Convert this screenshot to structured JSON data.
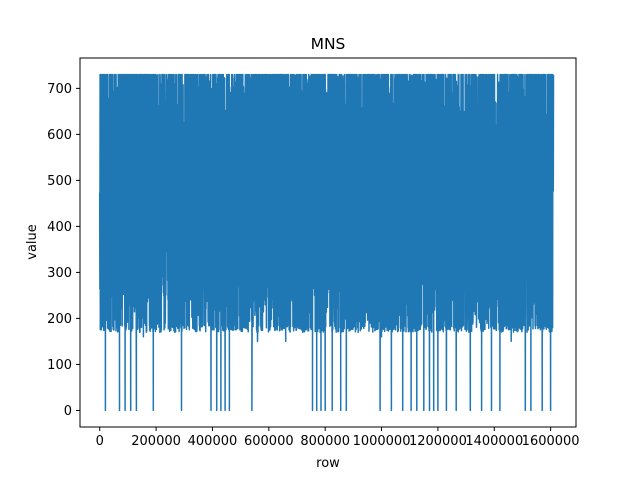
{
  "chart_data": {
    "type": "line",
    "title": "MNS",
    "xlabel": "row",
    "ylabel": "value",
    "xlim": [
      -70000,
      1690000
    ],
    "ylim": [
      -36,
      766
    ],
    "xticks": [
      0,
      200000,
      400000,
      600000,
      800000,
      1000000,
      1200000,
      1400000,
      1600000
    ],
    "xtick_labels": [
      "0",
      "200000",
      "400000",
      "600000",
      "800000",
      "1000000",
      "1200000",
      "1400000",
      "1600000"
    ],
    "yticks": [
      0,
      100,
      200,
      300,
      400,
      500,
      600,
      700
    ],
    "ytick_labels": [
      "0",
      "100",
      "200",
      "300",
      "400",
      "500",
      "600",
      "700"
    ],
    "grid": false,
    "series": [
      {
        "color": "#1f77b4",
        "x_range": [
          0,
          1610000
        ],
        "value_band_typical": [
          170,
          730
        ],
        "value_min": 0,
        "value_max": 730,
        "dips_to_zero_at_x": [
          20000,
          70000,
          90000,
          110000,
          130000,
          190000,
          290000,
          395000,
          415000,
          430000,
          445000,
          460000,
          540000,
          755000,
          770000,
          785000,
          800000,
          825000,
          855000,
          875000,
          995000,
          1035000,
          1075000,
          1105000,
          1125000,
          1150000,
          1170000,
          1185000,
          1200000,
          1230000,
          1265000,
          1315000,
          1355000,
          1390000,
          1420000,
          1510000,
          1530000,
          1570000,
          1600000
        ],
        "approx_dips_partial": [
          {
            "x": 155000,
            "y": 160
          },
          {
            "x": 560000,
            "y": 150
          },
          {
            "x": 660000,
            "y": 150
          },
          {
            "x": 1000000,
            "y": 160
          },
          {
            "x": 1460000,
            "y": 150
          }
        ]
      }
    ]
  }
}
